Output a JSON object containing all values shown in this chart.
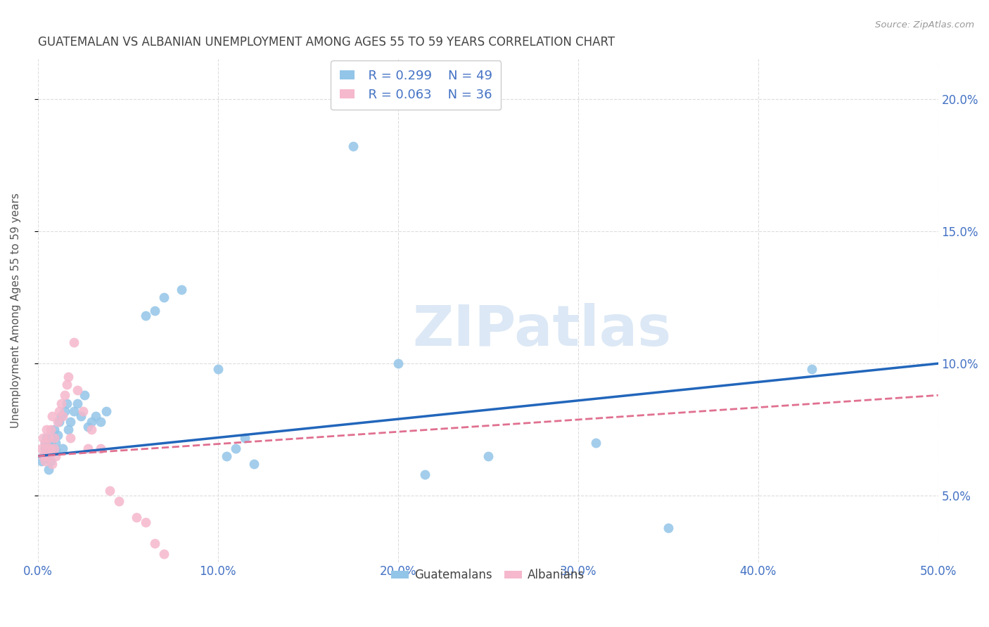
{
  "title": "GUATEMALAN VS ALBANIAN UNEMPLOYMENT AMONG AGES 55 TO 59 YEARS CORRELATION CHART",
  "source": "Source: ZipAtlas.com",
  "ylabel": "Unemployment Among Ages 55 to 59 years",
  "xlim": [
    0.0,
    0.5
  ],
  "ylim": [
    0.025,
    0.215
  ],
  "xticks": [
    0.0,
    0.1,
    0.2,
    0.3,
    0.4,
    0.5
  ],
  "xticklabels": [
    "0.0%",
    "10.0%",
    "20.0%",
    "30.0%",
    "40.0%",
    "50.0%"
  ],
  "yticks": [
    0.05,
    0.1,
    0.15,
    0.2
  ],
  "yticklabels": [
    "5.0%",
    "10.0%",
    "15.0%",
    "20.0%"
  ],
  "legend_blue_r": "R = 0.299",
  "legend_blue_n": "N = 49",
  "legend_pink_r": "R = 0.063",
  "legend_pink_n": "N = 36",
  "blue_color": "#93c5e8",
  "pink_color": "#f5b8cc",
  "blue_line_color": "#2266bb",
  "pink_line_color": "#e07090",
  "axis_color": "#4472c4",
  "watermark": "ZIPatlas",
  "guatemalan_x": [
    0.002,
    0.003,
    0.004,
    0.004,
    0.005,
    0.005,
    0.005,
    0.006,
    0.006,
    0.007,
    0.007,
    0.008,
    0.008,
    0.009,
    0.01,
    0.01,
    0.011,
    0.012,
    0.013,
    0.014,
    0.015,
    0.016,
    0.017,
    0.018,
    0.02,
    0.022,
    0.024,
    0.026,
    0.028,
    0.03,
    0.032,
    0.035,
    0.038,
    0.06,
    0.065,
    0.07,
    0.08,
    0.1,
    0.105,
    0.11,
    0.115,
    0.12,
    0.175,
    0.2,
    0.215,
    0.25,
    0.31,
    0.35,
    0.43
  ],
  "guatemalan_y": [
    0.063,
    0.065,
    0.068,
    0.07,
    0.065,
    0.068,
    0.072,
    0.06,
    0.066,
    0.063,
    0.07,
    0.068,
    0.072,
    0.075,
    0.067,
    0.07,
    0.073,
    0.078,
    0.08,
    0.068,
    0.082,
    0.085,
    0.075,
    0.078,
    0.082,
    0.085,
    0.08,
    0.088,
    0.076,
    0.078,
    0.08,
    0.078,
    0.082,
    0.118,
    0.12,
    0.125,
    0.128,
    0.098,
    0.065,
    0.068,
    0.072,
    0.062,
    0.182,
    0.1,
    0.058,
    0.065,
    0.07,
    0.038,
    0.098
  ],
  "albanian_x": [
    0.002,
    0.003,
    0.003,
    0.004,
    0.004,
    0.005,
    0.005,
    0.006,
    0.006,
    0.007,
    0.007,
    0.008,
    0.008,
    0.009,
    0.009,
    0.01,
    0.011,
    0.012,
    0.013,
    0.014,
    0.015,
    0.016,
    0.017,
    0.018,
    0.02,
    0.022,
    0.025,
    0.028,
    0.03,
    0.035,
    0.04,
    0.045,
    0.055,
    0.06,
    0.065,
    0.07
  ],
  "albanian_y": [
    0.068,
    0.065,
    0.072,
    0.063,
    0.07,
    0.068,
    0.075,
    0.065,
    0.072,
    0.068,
    0.075,
    0.062,
    0.08,
    0.068,
    0.072,
    0.065,
    0.078,
    0.082,
    0.085,
    0.08,
    0.088,
    0.092,
    0.095,
    0.072,
    0.108,
    0.09,
    0.082,
    0.068,
    0.075,
    0.068,
    0.052,
    0.048,
    0.042,
    0.04,
    0.032,
    0.028
  ],
  "blue_trendline_x": [
    0.0,
    0.5
  ],
  "blue_trendline_y": [
    0.065,
    0.1
  ],
  "pink_trendline_x": [
    0.0,
    0.5
  ],
  "pink_trendline_y": [
    0.065,
    0.088
  ]
}
